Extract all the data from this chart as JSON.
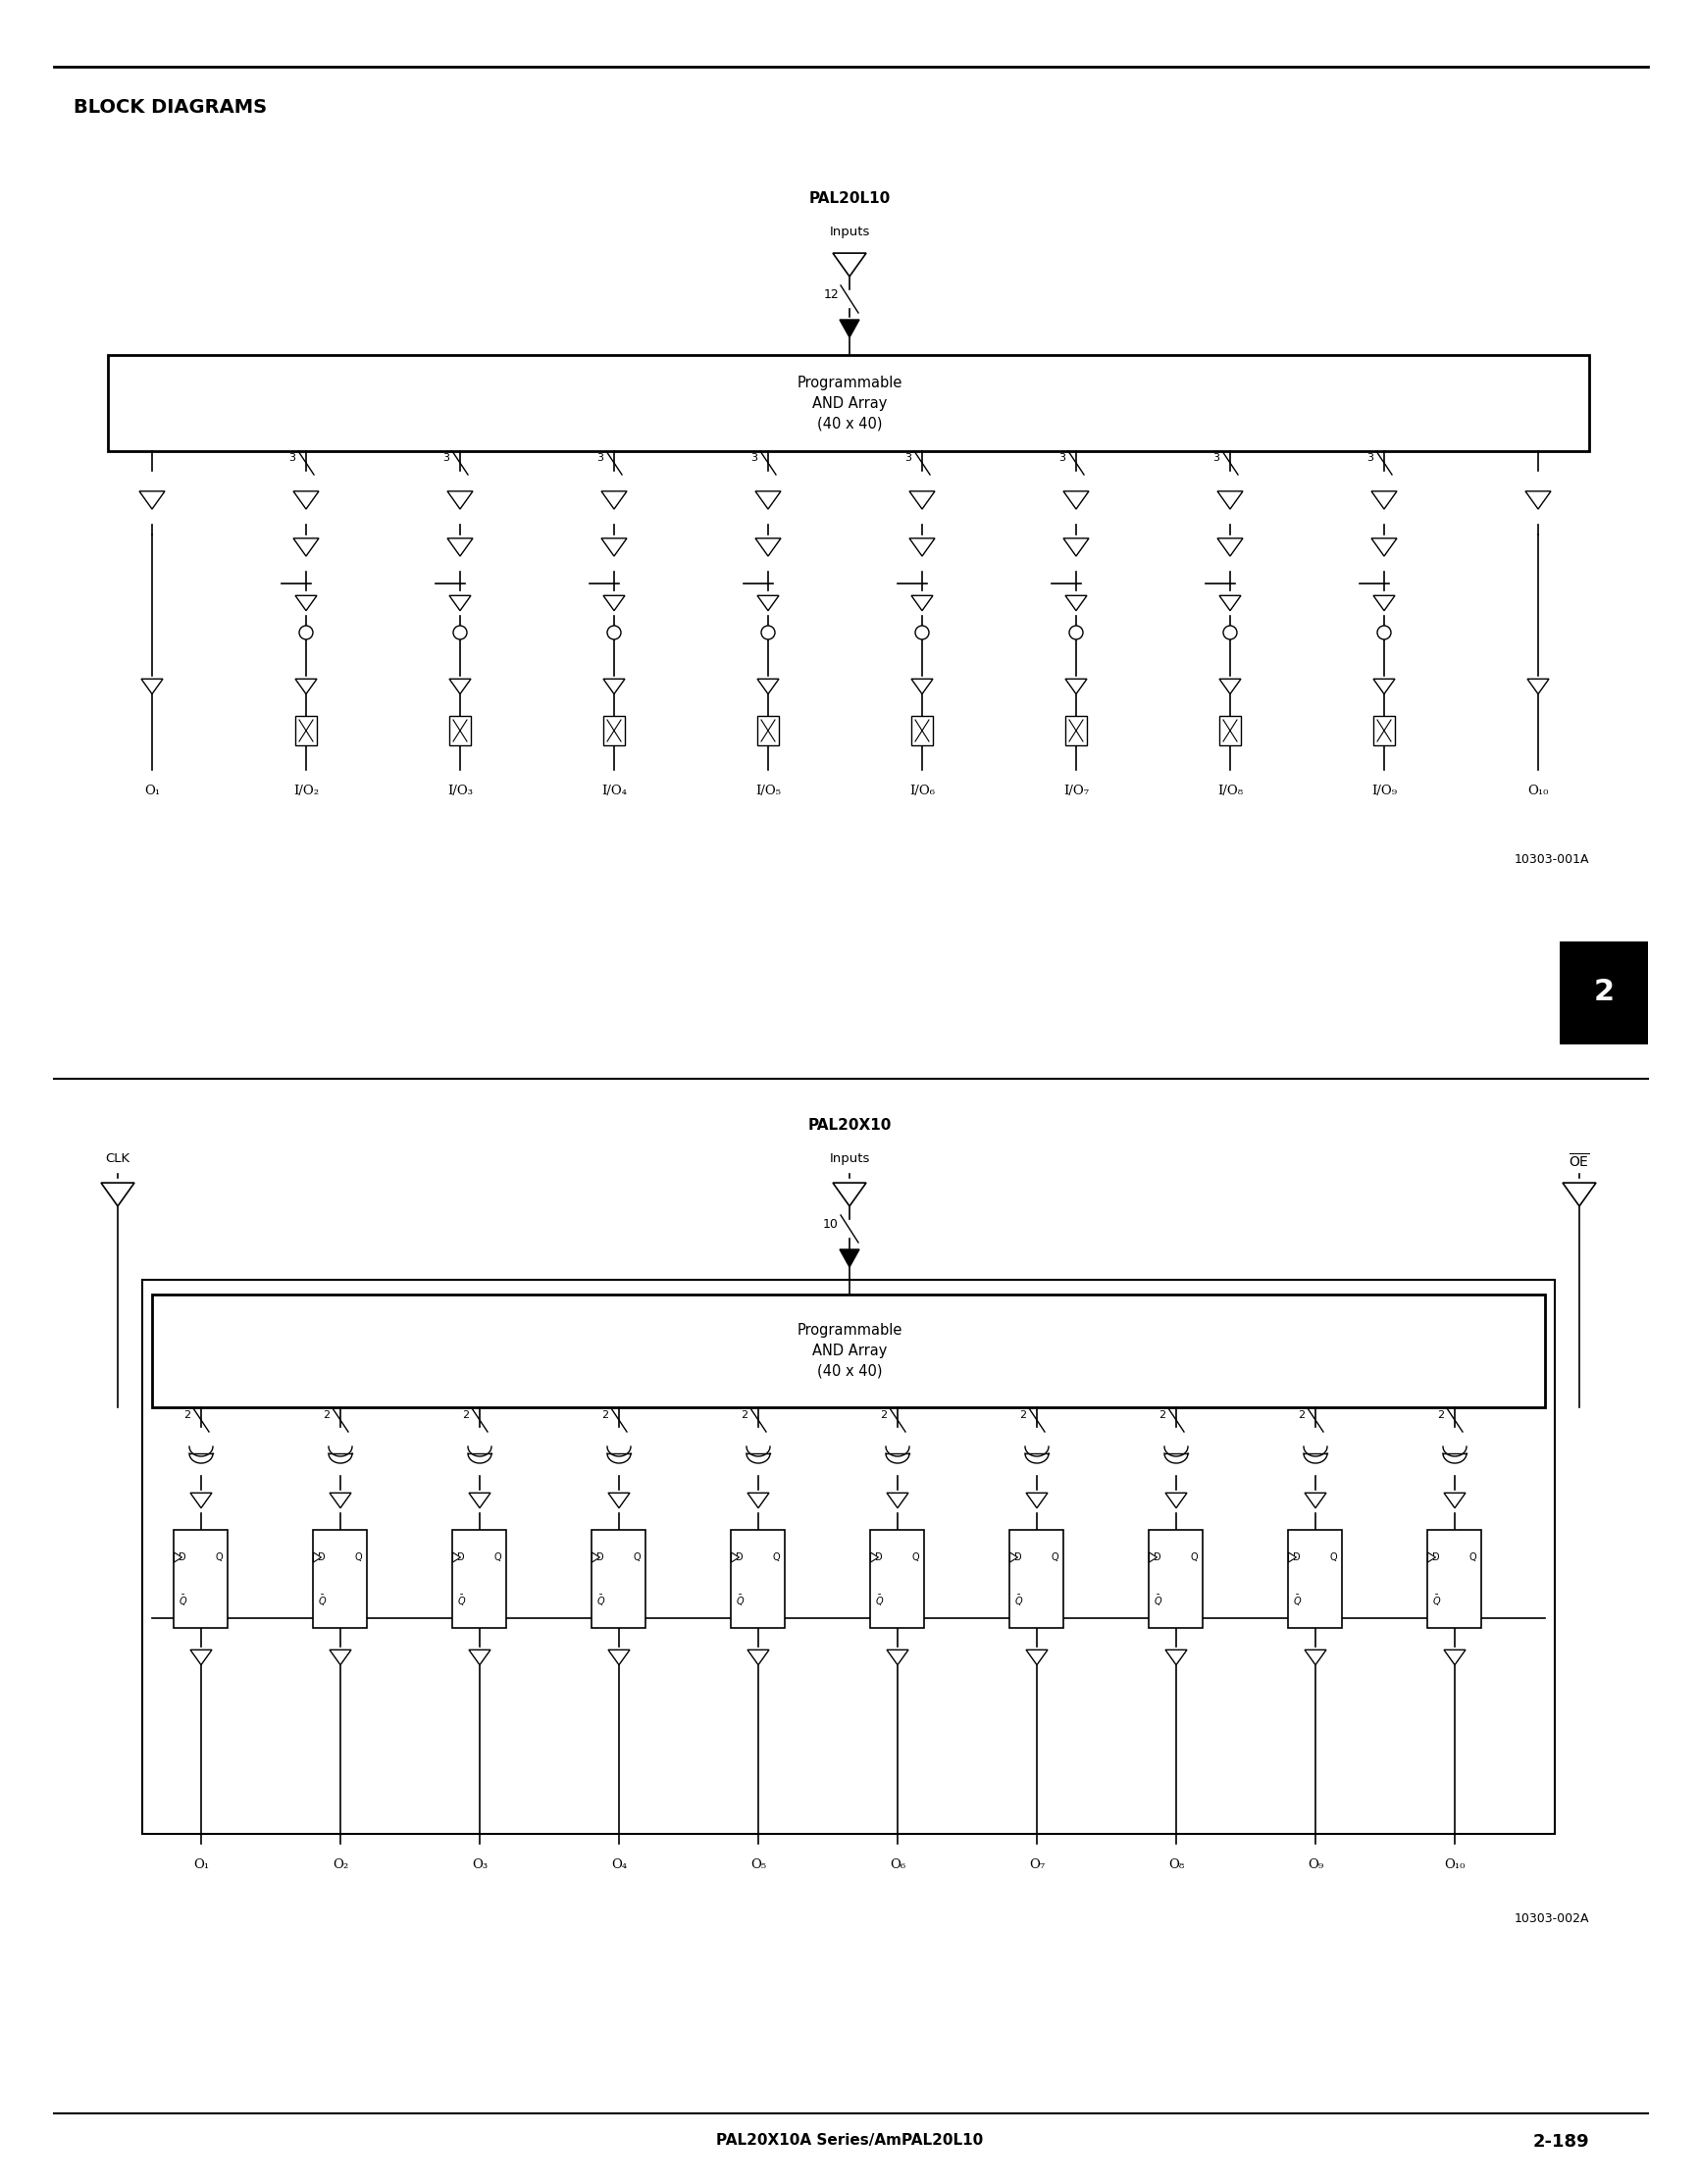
{
  "page_title": "BLOCK DIAGRAMS",
  "footer_left": "PAL20X10A Series/AmPAL20L10",
  "footer_right": "2-189",
  "diagram1": {
    "title": "PAL20L10",
    "inputs_label": "Inputs",
    "input_count": "12",
    "box_text": "Programmable\nAND Array\n(40 x 40)",
    "ref": "10303-001A",
    "outputs": [
      "O₁",
      "I/O₂",
      "I/O₃",
      "I/O₄",
      "I/O₅",
      "I/O₆",
      "I/O₇",
      "I/O₈",
      "I/O₉",
      "O₁₀"
    ]
  },
  "diagram2": {
    "title": "PAL20X10",
    "inputs_label": "Inputs",
    "input_count": "10",
    "clk_label": "CLK",
    "oe_label": "OE",
    "box_text": "Programmable\nAND Array\n(40 x 40)",
    "ref": "10303-002A",
    "outputs": [
      "O₁",
      "O₂",
      "O₃",
      "O₄",
      "O₅",
      "O₆",
      "O₇",
      "O₈",
      "O₉",
      "O₁₀"
    ]
  },
  "bg_color": "#ffffff",
  "line_color": "#000000",
  "text_color": "#000000",
  "sidebar_label": "2",
  "sidebar_bg": "#000000",
  "sidebar_text": "#ffffff"
}
